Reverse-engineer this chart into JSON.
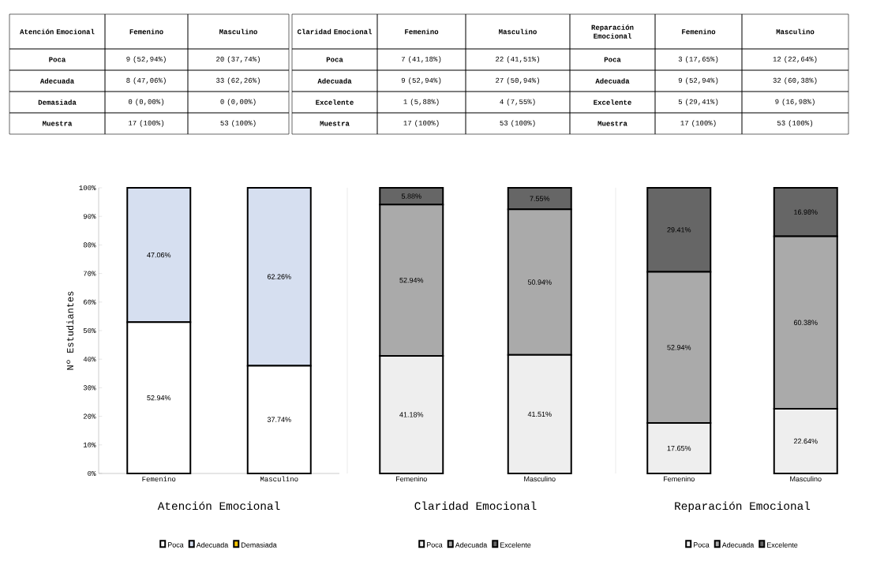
{
  "chart_data": [
    {
      "type": "bar",
      "title": "Atención Emocional",
      "ylabel": "Nº Estudiantes",
      "categories": [
        "Femenino",
        "Masculino"
      ],
      "stacked": true,
      "legend": "bottom",
      "ylim": [
        0,
        100
      ],
      "yticks": [
        {
          "value": 0,
          "label": "0%"
        },
        {
          "value": 10,
          "label": "10%"
        },
        {
          "value": 20,
          "label": "20%"
        },
        {
          "value": 30,
          "label": "30%"
        },
        {
          "value": 40,
          "label": "40%"
        },
        {
          "value": 50,
          "label": "50%"
        },
        {
          "value": 60,
          "label": "60%"
        },
        {
          "value": 70,
          "label": "70%"
        },
        {
          "value": 80,
          "label": "80%"
        },
        {
          "value": 90,
          "label": "90%"
        },
        {
          "value": 100,
          "label": "100%"
        }
      ],
      "series": [
        {
          "name": "Poca",
          "color": "#ffffff",
          "values": [
            52.94,
            37.74
          ],
          "value_labels": [
            "52.94%",
            "37.74%"
          ]
        },
        {
          "name": "Adecuada",
          "color": "#d6dff0",
          "values": [
            47.06,
            62.26
          ],
          "value_labels": [
            "47.06%",
            "62.26%"
          ]
        },
        {
          "name": "Demasiada",
          "color": "#f5c400",
          "values": [
            0,
            0
          ],
          "value_labels": [
            null,
            null
          ]
        }
      ],
      "annotations": [
        "Atención Emocional",
        "Femenino",
        "Masculino",
        "Poca",
        "9 (52,94%)",
        "20 (37,74%)",
        "Adecuada",
        "8 (47,06%)",
        "33 (62,26%)",
        "Demasiada",
        "0 (0,00%)",
        "0 (0,00%)",
        "Muestra",
        "17 (100%)",
        "53 (100%)"
      ]
    },
    {
      "type": "bar",
      "title": "Claridad Emocional",
      "categories": [
        "Femenino",
        "Masculino"
      ],
      "stacked": true,
      "legend": "bottom",
      "ylim": [
        0,
        100
      ],
      "tick_labels": "x",
      "series": [
        {
          "name": "Poca",
          "color": "#eeeeee",
          "values": [
            41.18,
            41.51
          ],
          "value_labels": [
            "41.18%",
            "41.51%"
          ]
        },
        {
          "name": "Adecuada",
          "color": "#aaaaaa",
          "values": [
            52.94,
            50.94
          ],
          "value_labels": [
            "52.94%",
            "50.94%"
          ]
        },
        {
          "name": "Excelente",
          "color": "#666666",
          "values": [
            5.88,
            7.55
          ],
          "value_labels": [
            "5.88%",
            "7.55%"
          ]
        }
      ],
      "annotations": [
        "Claridad Emocional",
        "Femenino",
        "Masculino",
        "Poca",
        "7 (41,18%)",
        "22 (41,51%)",
        "Adecuada",
        "9 (52,94%)",
        "27 (50,94%)",
        "Excelente",
        "1 (5,88%)",
        "4 (7,55%)",
        "Muestra",
        "17 (100%)",
        "53 (100%)"
      ]
    },
    {
      "type": "bar",
      "title": "Reparación Emocional",
      "categories": [
        "Femenino",
        "Masculino"
      ],
      "stacked": true,
      "legend": "bottom",
      "ylim": [
        0,
        100
      ],
      "tick_labels": "x",
      "series": [
        {
          "name": "Poca",
          "color": "#eeeeee",
          "values": [
            17.65,
            22.64
          ],
          "value_labels": [
            "17.65%",
            "22.64%"
          ]
        },
        {
          "name": "Adecuada",
          "color": "#aaaaaa",
          "values": [
            52.94,
            60.38
          ],
          "value_labels": [
            "52.94%",
            "60.38%"
          ]
        },
        {
          "name": "Excelente",
          "color": "#666666",
          "values": [
            29.41,
            16.98
          ],
          "value_labels": [
            "29.41%",
            "16.98%"
          ]
        }
      ],
      "annotations": [
        "Reparación Emocional",
        "Femenino",
        "Masculino",
        "Poca",
        "3 (17,65%)",
        "12 (22,64%)",
        "Adecuada",
        "9 (52,94%)",
        "32 (60,38%)",
        "Excelente",
        "5 (29,41%)",
        "9 (16,98%)",
        "Muestra",
        "17 (100%)",
        "53 (100%)"
      ]
    }
  ]
}
